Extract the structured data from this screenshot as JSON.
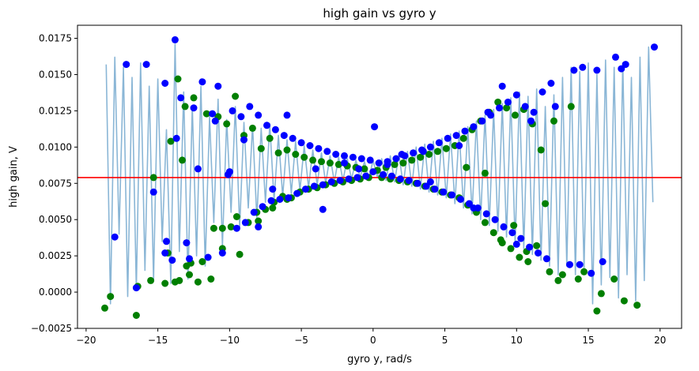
{
  "chart_data": {
    "type": "scatter",
    "title": "high gain vs gyro y",
    "xlabel": "gyro y, rad/s",
    "ylabel": "high gain, V",
    "xlim": [
      -20.6,
      21.5
    ],
    "ylim": [
      -0.0025,
      0.0184
    ],
    "xticks": [
      -20,
      -15,
      -10,
      -5,
      0,
      5,
      10,
      15,
      20
    ],
    "xtick_labels": [
      "−20",
      "−15",
      "−10",
      "−5",
      "0",
      "5",
      "10",
      "15",
      "20"
    ],
    "yticks": [
      -0.0025,
      0.0,
      0.0025,
      0.005,
      0.0075,
      0.01,
      0.0125,
      0.015,
      0.0175
    ],
    "ytick_labels": [
      "−0.0025",
      "0.0000",
      "0.0025",
      "0.0050",
      "0.0075",
      "0.0100",
      "0.0125",
      "0.0150",
      "0.0175"
    ],
    "grid": false,
    "hline": {
      "y": 0.0079,
      "color": "#ff0000"
    },
    "series": [
      {
        "kind": "line",
        "color": "#8ab6d6",
        "x": [
          -18.6,
          -18.3,
          -18.0,
          -17.7,
          -17.4,
          -17.1,
          -16.8,
          -16.5,
          -16.2,
          -15.9,
          -15.6,
          -15.3,
          -15.0,
          -14.7,
          -14.4,
          -14.1,
          -13.8,
          -13.5,
          -13.2,
          -12.9,
          -12.6,
          -12.3,
          -12.0,
          -11.7,
          -11.4,
          -11.1,
          -10.8,
          -10.5,
          -10.2,
          -9.9,
          -9.6,
          -9.3,
          -9.0,
          -8.7,
          -8.4,
          -8.1,
          -7.8,
          -7.5,
          -7.2,
          -6.9,
          -6.6,
          -6.3,
          -6.0,
          -5.7,
          -5.4,
          -5.1,
          -4.8,
          -4.5,
          -4.2,
          -3.9,
          -3.6,
          -3.3,
          -3.0,
          -2.7,
          -2.4,
          -2.1,
          -1.8,
          -1.5,
          -1.2,
          -0.9,
          -0.6,
          -0.3,
          0.0,
          0.3,
          0.6,
          0.9,
          1.2,
          1.5,
          1.8,
          2.1,
          2.4,
          2.7,
          3.0,
          3.3,
          3.6,
          3.9,
          4.2,
          4.5,
          4.8,
          5.1,
          5.4,
          5.7,
          6.0,
          6.3,
          6.6,
          6.9,
          7.2,
          7.5,
          7.8,
          8.1,
          8.4,
          8.7,
          9.0,
          9.3,
          9.6,
          9.9,
          10.2,
          10.5,
          10.8,
          11.1,
          11.4,
          11.7,
          12.0,
          12.3,
          12.6,
          12.9,
          13.2,
          13.5,
          13.8,
          14.1,
          14.4,
          14.7,
          15.0,
          15.3,
          15.6,
          15.9,
          16.2,
          16.5,
          16.8,
          17.1,
          17.4,
          17.7,
          18.0,
          18.3,
          18.6,
          18.9,
          19.2,
          19.5
        ],
        "y": [
          0.0157,
          -0.0008,
          0.0162,
          0.004,
          0.0155,
          -0.0003,
          0.0148,
          0.0002,
          0.0158,
          0.0015,
          0.0142,
          0.0008,
          0.0147,
          0.0035,
          0.0112,
          0.0006,
          0.0171,
          0.0028,
          0.0138,
          0.0009,
          0.0128,
          0.0025,
          0.0142,
          0.0018,
          0.0121,
          0.0048,
          0.0133,
          0.0032,
          0.0119,
          0.0055,
          0.0128,
          0.0045,
          0.0117,
          0.0058,
          0.0115,
          0.0051,
          0.0113,
          0.0062,
          0.0116,
          0.0063,
          0.0108,
          0.0066,
          0.0105,
          0.0068,
          0.0104,
          0.007,
          0.0101,
          0.0072,
          0.0098,
          0.0074,
          0.0096,
          0.0075,
          0.0094,
          0.0076,
          0.0093,
          0.0077,
          0.0092,
          0.0078,
          0.0091,
          0.0079,
          0.009,
          0.0078,
          0.0091,
          0.0079,
          0.0092,
          0.0077,
          0.0094,
          0.0076,
          0.0095,
          0.0074,
          0.0097,
          0.0073,
          0.01,
          0.0071,
          0.0102,
          0.0069,
          0.0104,
          0.0067,
          0.0106,
          0.0065,
          0.0109,
          0.0061,
          0.0111,
          0.0058,
          0.0114,
          0.0054,
          0.0118,
          0.005,
          0.0122,
          0.0046,
          0.0126,
          0.0042,
          0.013,
          0.0038,
          0.0134,
          0.0033,
          0.0138,
          0.003,
          0.0135,
          0.0026,
          0.014,
          0.0022,
          0.0128,
          0.0018,
          0.0136,
          0.0012,
          0.0148,
          0.0018,
          0.0155,
          0.0012,
          0.0152,
          0.0015,
          0.0158,
          -0.0008,
          0.015,
          0.0005,
          0.016,
          0.001,
          0.0155,
          -0.0004,
          0.0158,
          0.0012,
          0.0148,
          -0.0006,
          0.0162,
          0.0008,
          0.0169,
          0.0062
        ]
      },
      {
        "kind": "scatter",
        "color": "#007f00",
        "x": [
          -18.7,
          -18.3,
          -16.5,
          -16.4,
          -15.5,
          -15.3,
          -14.5,
          -14.3,
          -14.1,
          -13.8,
          -13.6,
          -13.3,
          -13.1,
          -12.8,
          -12.7,
          -12.5,
          -12.2,
          -11.9,
          -11.6,
          -11.3,
          -11.1,
          -10.8,
          -10.5,
          -10.2,
          -9.9,
          -9.6,
          -9.3,
          -9.0,
          -8.7,
          -8.4,
          -8.1,
          -7.8,
          -7.5,
          -7.2,
          -6.9,
          -6.6,
          -6.3,
          -6.0,
          -5.7,
          -5.4,
          -5.1,
          -4.8,
          -4.5,
          -4.2,
          -3.9,
          -3.6,
          -3.3,
          -3.0,
          -2.7,
          -2.4,
          -2.1,
          -1.8,
          -1.5,
          -1.2,
          -0.9,
          -0.6,
          -0.3,
          0.3,
          0.6,
          0.9,
          1.2,
          1.5,
          1.8,
          2.1,
          2.4,
          2.7,
          3.0,
          3.3,
          3.6,
          3.9,
          4.2,
          4.5,
          4.8,
          5.1,
          5.4,
          5.7,
          6.0,
          6.3,
          6.6,
          6.9,
          7.2,
          7.5,
          7.8,
          8.1,
          8.4,
          8.7,
          9.0,
          9.3,
          9.6,
          9.9,
          10.2,
          10.5,
          10.8,
          11.1,
          11.4,
          11.7,
          12.0,
          12.3,
          12.6,
          12.9,
          13.2,
          13.8,
          14.3,
          14.7,
          15.6,
          15.9,
          16.8,
          17.5,
          18.4,
          -13.5,
          -13.0,
          -10.5,
          -9.5,
          -8.0,
          -7.0,
          -6.0,
          6.5,
          7.8,
          8.9,
          9.8,
          10.7
        ],
        "y": [
          -0.0011,
          -0.0003,
          -0.0016,
          0.0004,
          0.0008,
          0.0079,
          0.0006,
          0.0027,
          0.0104,
          0.0007,
          0.0147,
          0.0091,
          0.0128,
          0.0012,
          0.002,
          0.0134,
          0.0007,
          0.0021,
          0.0123,
          0.0009,
          0.0044,
          0.0121,
          0.003,
          0.0116,
          0.0045,
          0.0135,
          0.0026,
          0.0108,
          0.0048,
          0.0113,
          0.0055,
          0.0099,
          0.0057,
          0.0106,
          0.0062,
          0.0096,
          0.0066,
          0.0098,
          0.0065,
          0.0095,
          0.0069,
          0.0093,
          0.0071,
          0.0091,
          0.0072,
          0.009,
          0.0074,
          0.0089,
          0.0075,
          0.0088,
          0.0076,
          0.0087,
          0.0077,
          0.0086,
          0.0078,
          0.0085,
          0.0079,
          0.0084,
          0.0079,
          0.0086,
          0.0078,
          0.0088,
          0.0077,
          0.0089,
          0.0076,
          0.0091,
          0.0075,
          0.0093,
          0.0073,
          0.0095,
          0.0071,
          0.0097,
          0.0069,
          0.0099,
          0.0067,
          0.0101,
          0.0065,
          0.0106,
          0.006,
          0.0112,
          0.0055,
          0.0118,
          0.0048,
          0.0124,
          0.0041,
          0.0131,
          0.0034,
          0.0127,
          0.003,
          0.0122,
          0.0024,
          0.0126,
          0.0021,
          0.0116,
          0.0032,
          0.0098,
          0.0061,
          0.0014,
          0.0118,
          0.0008,
          0.0012,
          0.0128,
          0.0009,
          0.0014,
          -0.0013,
          -0.0001,
          0.0009,
          -0.0006,
          -0.0009,
          0.0008,
          0.0018,
          0.0044,
          0.0052,
          0.0049,
          0.0058,
          0.0064,
          0.0086,
          0.0082,
          0.0036,
          0.0046,
          0.0028
        ]
      },
      {
        "kind": "scatter",
        "color": "#0000ff",
        "x": [
          -18.0,
          -17.2,
          -16.5,
          -15.8,
          -15.3,
          -14.5,
          -14.4,
          -14.0,
          -13.8,
          -13.4,
          -13.0,
          -12.5,
          -12.2,
          -11.9,
          -11.5,
          -11.2,
          -10.8,
          -10.5,
          -10.1,
          -9.8,
          -9.5,
          -9.2,
          -8.9,
          -8.6,
          -8.3,
          -8.0,
          -7.7,
          -7.4,
          -7.1,
          -6.8,
          -6.5,
          -6.2,
          -5.9,
          -5.6,
          -5.3,
          -5.0,
          -4.7,
          -4.4,
          -4.1,
          -3.8,
          -3.5,
          -3.2,
          -2.9,
          -2.6,
          -2.3,
          -2.0,
          -1.7,
          -1.4,
          -1.1,
          -0.8,
          -0.5,
          -0.2,
          0.1,
          0.4,
          0.7,
          1.0,
          1.3,
          1.6,
          1.9,
          2.2,
          2.5,
          2.8,
          3.1,
          3.4,
          3.7,
          4.0,
          4.3,
          4.6,
          4.9,
          5.2,
          5.5,
          5.8,
          6.1,
          6.4,
          6.7,
          7.0,
          7.3,
          7.6,
          7.9,
          8.2,
          8.5,
          8.8,
          9.1,
          9.4,
          9.7,
          10.0,
          10.3,
          10.6,
          10.9,
          11.2,
          11.5,
          11.8,
          12.1,
          12.4,
          12.7,
          13.7,
          14.0,
          14.4,
          14.6,
          15.2,
          15.6,
          16.0,
          16.9,
          17.3,
          17.6,
          19.6,
          -13.7,
          -14.5,
          -12.8,
          -11.0,
          -10.0,
          -9.0,
          -8.0,
          -7.0,
          -6.0,
          -4.0,
          -2.0,
          0.0,
          2.0,
          4.0,
          6.0,
          7.0,
          8.0,
          9.0,
          10.0,
          11.0,
          -3.5,
          3.5,
          -1.0,
          1.0
        ],
        "y": [
          0.0038,
          0.0157,
          0.0003,
          0.0157,
          0.0069,
          0.0144,
          0.0035,
          0.0022,
          0.0174,
          0.0134,
          0.0034,
          0.0127,
          0.0085,
          0.0145,
          0.0024,
          0.0123,
          0.0142,
          0.0027,
          0.0081,
          0.0125,
          0.0044,
          0.0121,
          0.0048,
          0.0128,
          0.0055,
          0.0122,
          0.0059,
          0.0115,
          0.0063,
          0.0112,
          0.0064,
          0.0108,
          0.0065,
          0.0106,
          0.0068,
          0.0103,
          0.0071,
          0.0101,
          0.0073,
          0.0099,
          0.0074,
          0.0097,
          0.0076,
          0.0095,
          0.0077,
          0.0094,
          0.0078,
          0.0093,
          0.0079,
          0.0092,
          0.008,
          0.0091,
          0.0114,
          0.0089,
          0.0081,
          0.009,
          0.008,
          0.0092,
          0.0078,
          0.0094,
          0.0077,
          0.0096,
          0.0075,
          0.0098,
          0.0073,
          0.01,
          0.0071,
          0.0103,
          0.0069,
          0.0106,
          0.0067,
          0.0108,
          0.0064,
          0.0111,
          0.0061,
          0.0114,
          0.0058,
          0.0118,
          0.0054,
          0.0122,
          0.005,
          0.0127,
          0.0045,
          0.0131,
          0.0041,
          0.0136,
          0.0037,
          0.0128,
          0.0031,
          0.0124,
          0.0027,
          0.0138,
          0.0023,
          0.0144,
          0.0128,
          0.0019,
          0.0153,
          0.0019,
          0.0155,
          0.0013,
          0.0153,
          0.0021,
          0.0162,
          0.0154,
          0.0157,
          0.0169,
          0.0106,
          0.0027,
          0.0023,
          0.0118,
          0.0083,
          0.0105,
          0.0045,
          0.0071,
          0.0122,
          0.0085,
          0.0089,
          0.0083,
          0.0095,
          0.0076,
          0.0101,
          0.0058,
          0.0124,
          0.0142,
          0.0033,
          0.0118,
          0.0057,
          0.0097,
          0.0085,
          0.0088
        ]
      }
    ]
  }
}
